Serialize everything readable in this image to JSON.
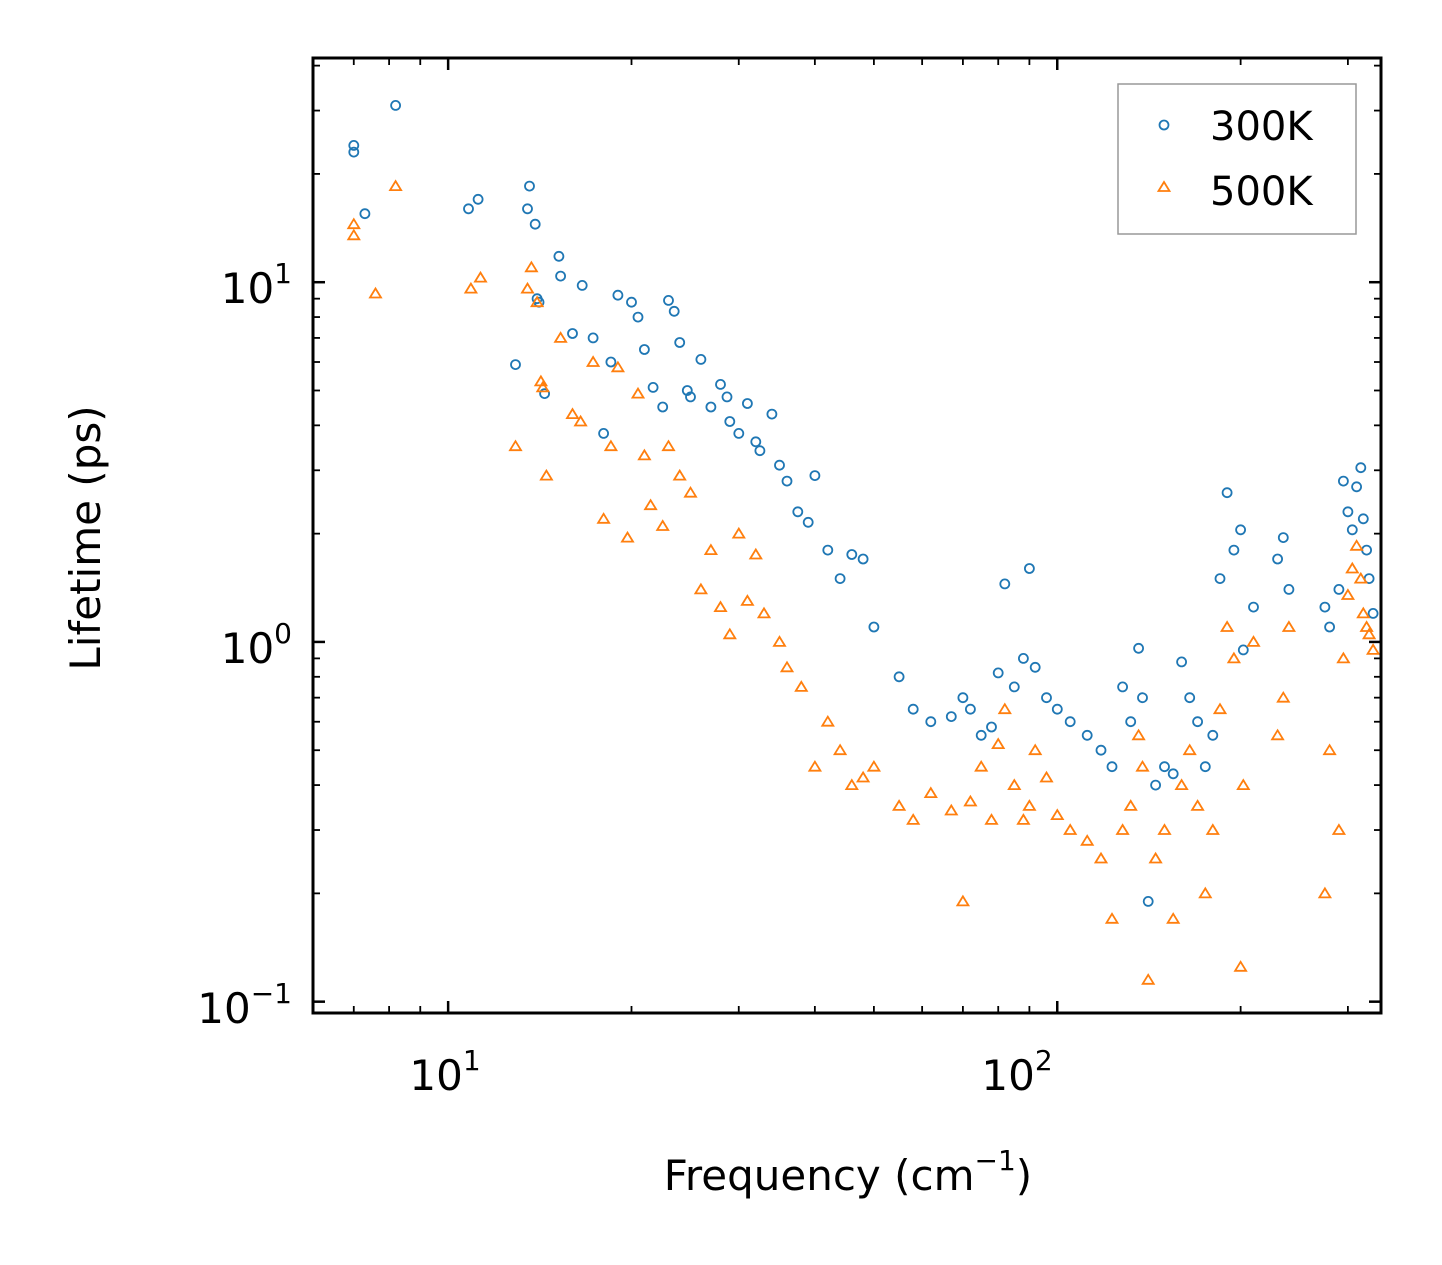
{
  "chart_data": {
    "type": "scatter",
    "xscale": "log",
    "yscale": "log",
    "xlim": [
      6,
      340
    ],
    "ylim": [
      0.093,
      42
    ],
    "xlabel": "Frequency (cm",
    "xlabel_sup": "−1",
    "xlabel_end": ")",
    "ylabel": "Lifetime (ps)",
    "xticks": [
      {
        "base": "10",
        "exp": "1",
        "value": 10
      },
      {
        "base": "10",
        "exp": "2",
        "value": 100
      }
    ],
    "yticks": [
      {
        "base": "10",
        "exp": "−1",
        "value": 0.1
      },
      {
        "base": "10",
        "exp": "0",
        "value": 1
      },
      {
        "base": "10",
        "exp": "1",
        "value": 10
      }
    ],
    "legend_position": "top-right",
    "series": [
      {
        "name": "300K",
        "marker": "circle",
        "color": "#1f77b4",
        "points": [
          [
            7,
            24
          ],
          [
            7,
            23
          ],
          [
            7.3,
            15.5
          ],
          [
            8.2,
            31
          ],
          [
            10.8,
            16
          ],
          [
            11.2,
            17
          ],
          [
            12.9,
            5.9
          ],
          [
            13.5,
            16
          ],
          [
            13.6,
            18.5
          ],
          [
            13.9,
            14.5
          ],
          [
            14,
            9
          ],
          [
            14.1,
            8.8
          ],
          [
            14.4,
            4.9
          ],
          [
            15.2,
            11.8
          ],
          [
            15.3,
            10.4
          ],
          [
            16,
            7.2
          ],
          [
            16.6,
            9.8
          ],
          [
            17.3,
            7
          ],
          [
            18,
            3.8
          ],
          [
            18.5,
            6
          ],
          [
            19,
            9.2
          ],
          [
            20,
            8.8
          ],
          [
            20.5,
            8
          ],
          [
            21,
            6.5
          ],
          [
            21.7,
            5.1
          ],
          [
            22.5,
            4.5
          ],
          [
            23,
            8.9
          ],
          [
            23.5,
            8.3
          ],
          [
            24,
            6.8
          ],
          [
            24.7,
            5
          ],
          [
            25,
            4.8
          ],
          [
            26,
            6.1
          ],
          [
            27,
            4.5
          ],
          [
            28,
            5.2
          ],
          [
            28.7,
            4.8
          ],
          [
            29,
            4.1
          ],
          [
            30,
            3.8
          ],
          [
            31,
            4.6
          ],
          [
            32,
            3.6
          ],
          [
            32.5,
            3.4
          ],
          [
            34,
            4.3
          ],
          [
            35,
            3.1
          ],
          [
            36,
            2.8
          ],
          [
            37.5,
            2.3
          ],
          [
            39,
            2.15
          ],
          [
            40,
            2.9
          ],
          [
            42,
            1.8
          ],
          [
            44,
            1.5
          ],
          [
            46,
            1.75
          ],
          [
            48,
            1.7
          ],
          [
            50,
            1.1
          ],
          [
            55,
            0.8
          ],
          [
            58,
            0.65
          ],
          [
            62,
            0.6
          ],
          [
            67,
            0.62
          ],
          [
            70,
            0.7
          ],
          [
            72,
            0.65
          ],
          [
            75,
            0.55
          ],
          [
            78,
            0.58
          ],
          [
            80,
            0.82
          ],
          [
            82,
            1.45
          ],
          [
            85,
            0.75
          ],
          [
            88,
            0.9
          ],
          [
            90,
            1.6
          ],
          [
            92,
            0.85
          ],
          [
            96,
            0.7
          ],
          [
            100,
            0.65
          ],
          [
            105,
            0.6
          ],
          [
            112,
            0.55
          ],
          [
            118,
            0.5
          ],
          [
            123,
            0.45
          ],
          [
            128,
            0.75
          ],
          [
            132,
            0.6
          ],
          [
            136,
            0.96
          ],
          [
            138,
            0.7
          ],
          [
            141,
            0.19
          ],
          [
            145,
            0.4
          ],
          [
            150,
            0.45
          ],
          [
            155,
            0.43
          ],
          [
            160,
            0.88
          ],
          [
            165,
            0.7
          ],
          [
            170,
            0.6
          ],
          [
            175,
            0.45
          ],
          [
            180,
            0.55
          ],
          [
            185,
            1.5
          ],
          [
            190,
            2.6
          ],
          [
            195,
            1.8
          ],
          [
            200,
            2.05
          ],
          [
            202,
            0.95
          ],
          [
            210,
            1.25
          ],
          [
            230,
            1.7
          ],
          [
            235,
            1.95
          ],
          [
            240,
            1.4
          ],
          [
            275,
            1.25
          ],
          [
            280,
            1.1
          ],
          [
            290,
            1.4
          ],
          [
            295,
            2.8
          ],
          [
            300,
            2.3
          ],
          [
            305,
            2.05
          ],
          [
            310,
            2.7
          ],
          [
            315,
            3.05
          ],
          [
            318,
            2.2
          ],
          [
            322,
            1.8
          ],
          [
            325,
            1.5
          ],
          [
            330,
            1.2
          ]
        ]
      },
      {
        "name": "500K",
        "marker": "triangle",
        "color": "#ff7f0e",
        "points": [
          [
            7,
            14.5
          ],
          [
            7,
            13.5
          ],
          [
            7.6,
            9.3
          ],
          [
            8.2,
            18.5
          ],
          [
            10.9,
            9.6
          ],
          [
            11.3,
            10.3
          ],
          [
            12.9,
            3.5
          ],
          [
            13.5,
            9.6
          ],
          [
            13.7,
            11
          ],
          [
            14,
            8.8
          ],
          [
            14.2,
            5.3
          ],
          [
            14.3,
            5.1
          ],
          [
            14.5,
            2.9
          ],
          [
            15.3,
            7
          ],
          [
            16,
            4.3
          ],
          [
            16.5,
            4.1
          ],
          [
            17.3,
            6
          ],
          [
            18,
            2.2
          ],
          [
            18.5,
            3.5
          ],
          [
            19,
            5.8
          ],
          [
            19.7,
            1.95
          ],
          [
            20.5,
            4.9
          ],
          [
            21,
            3.3
          ],
          [
            21.5,
            2.4
          ],
          [
            22.5,
            2.1
          ],
          [
            23,
            3.5
          ],
          [
            24,
            2.9
          ],
          [
            25,
            2.6
          ],
          [
            26,
            1.4
          ],
          [
            27,
            1.8
          ],
          [
            28,
            1.25
          ],
          [
            29,
            1.05
          ],
          [
            30,
            2
          ],
          [
            31,
            1.3
          ],
          [
            32,
            1.75
          ],
          [
            33,
            1.2
          ],
          [
            35,
            1
          ],
          [
            36,
            0.85
          ],
          [
            38,
            0.75
          ],
          [
            40,
            0.45
          ],
          [
            42,
            0.6
          ],
          [
            44,
            0.5
          ],
          [
            46,
            0.4
          ],
          [
            48,
            0.42
          ],
          [
            50,
            0.45
          ],
          [
            55,
            0.35
          ],
          [
            58,
            0.32
          ],
          [
            62,
            0.38
          ],
          [
            67,
            0.34
          ],
          [
            70,
            0.19
          ],
          [
            72,
            0.36
          ],
          [
            75,
            0.45
          ],
          [
            78,
            0.32
          ],
          [
            80,
            0.52
          ],
          [
            82,
            0.65
          ],
          [
            85,
            0.4
          ],
          [
            88,
            0.32
          ],
          [
            90,
            0.35
          ],
          [
            92,
            0.5
          ],
          [
            96,
            0.42
          ],
          [
            100,
            0.33
          ],
          [
            105,
            0.3
          ],
          [
            112,
            0.28
          ],
          [
            118,
            0.25
          ],
          [
            123,
            0.17
          ],
          [
            128,
            0.3
          ],
          [
            132,
            0.35
          ],
          [
            136,
            0.55
          ],
          [
            138,
            0.45
          ],
          [
            141,
            0.115
          ],
          [
            145,
            0.25
          ],
          [
            150,
            0.3
          ],
          [
            155,
            0.17
          ],
          [
            160,
            0.4
          ],
          [
            165,
            0.5
          ],
          [
            170,
            0.35
          ],
          [
            175,
            0.2
          ],
          [
            180,
            0.3
          ],
          [
            185,
            0.65
          ],
          [
            190,
            1.1
          ],
          [
            195,
            0.9
          ],
          [
            200,
            0.125
          ],
          [
            202,
            0.4
          ],
          [
            210,
            1
          ],
          [
            230,
            0.55
          ],
          [
            235,
            0.7
          ],
          [
            240,
            1.1
          ],
          [
            275,
            0.2
          ],
          [
            280,
            0.5
          ],
          [
            290,
            0.3
          ],
          [
            295,
            0.9
          ],
          [
            300,
            1.35
          ],
          [
            305,
            1.6
          ],
          [
            310,
            1.85
          ],
          [
            315,
            1.5
          ],
          [
            318,
            1.2
          ],
          [
            322,
            1.1
          ],
          [
            325,
            1.05
          ],
          [
            330,
            0.95
          ]
        ]
      }
    ]
  }
}
